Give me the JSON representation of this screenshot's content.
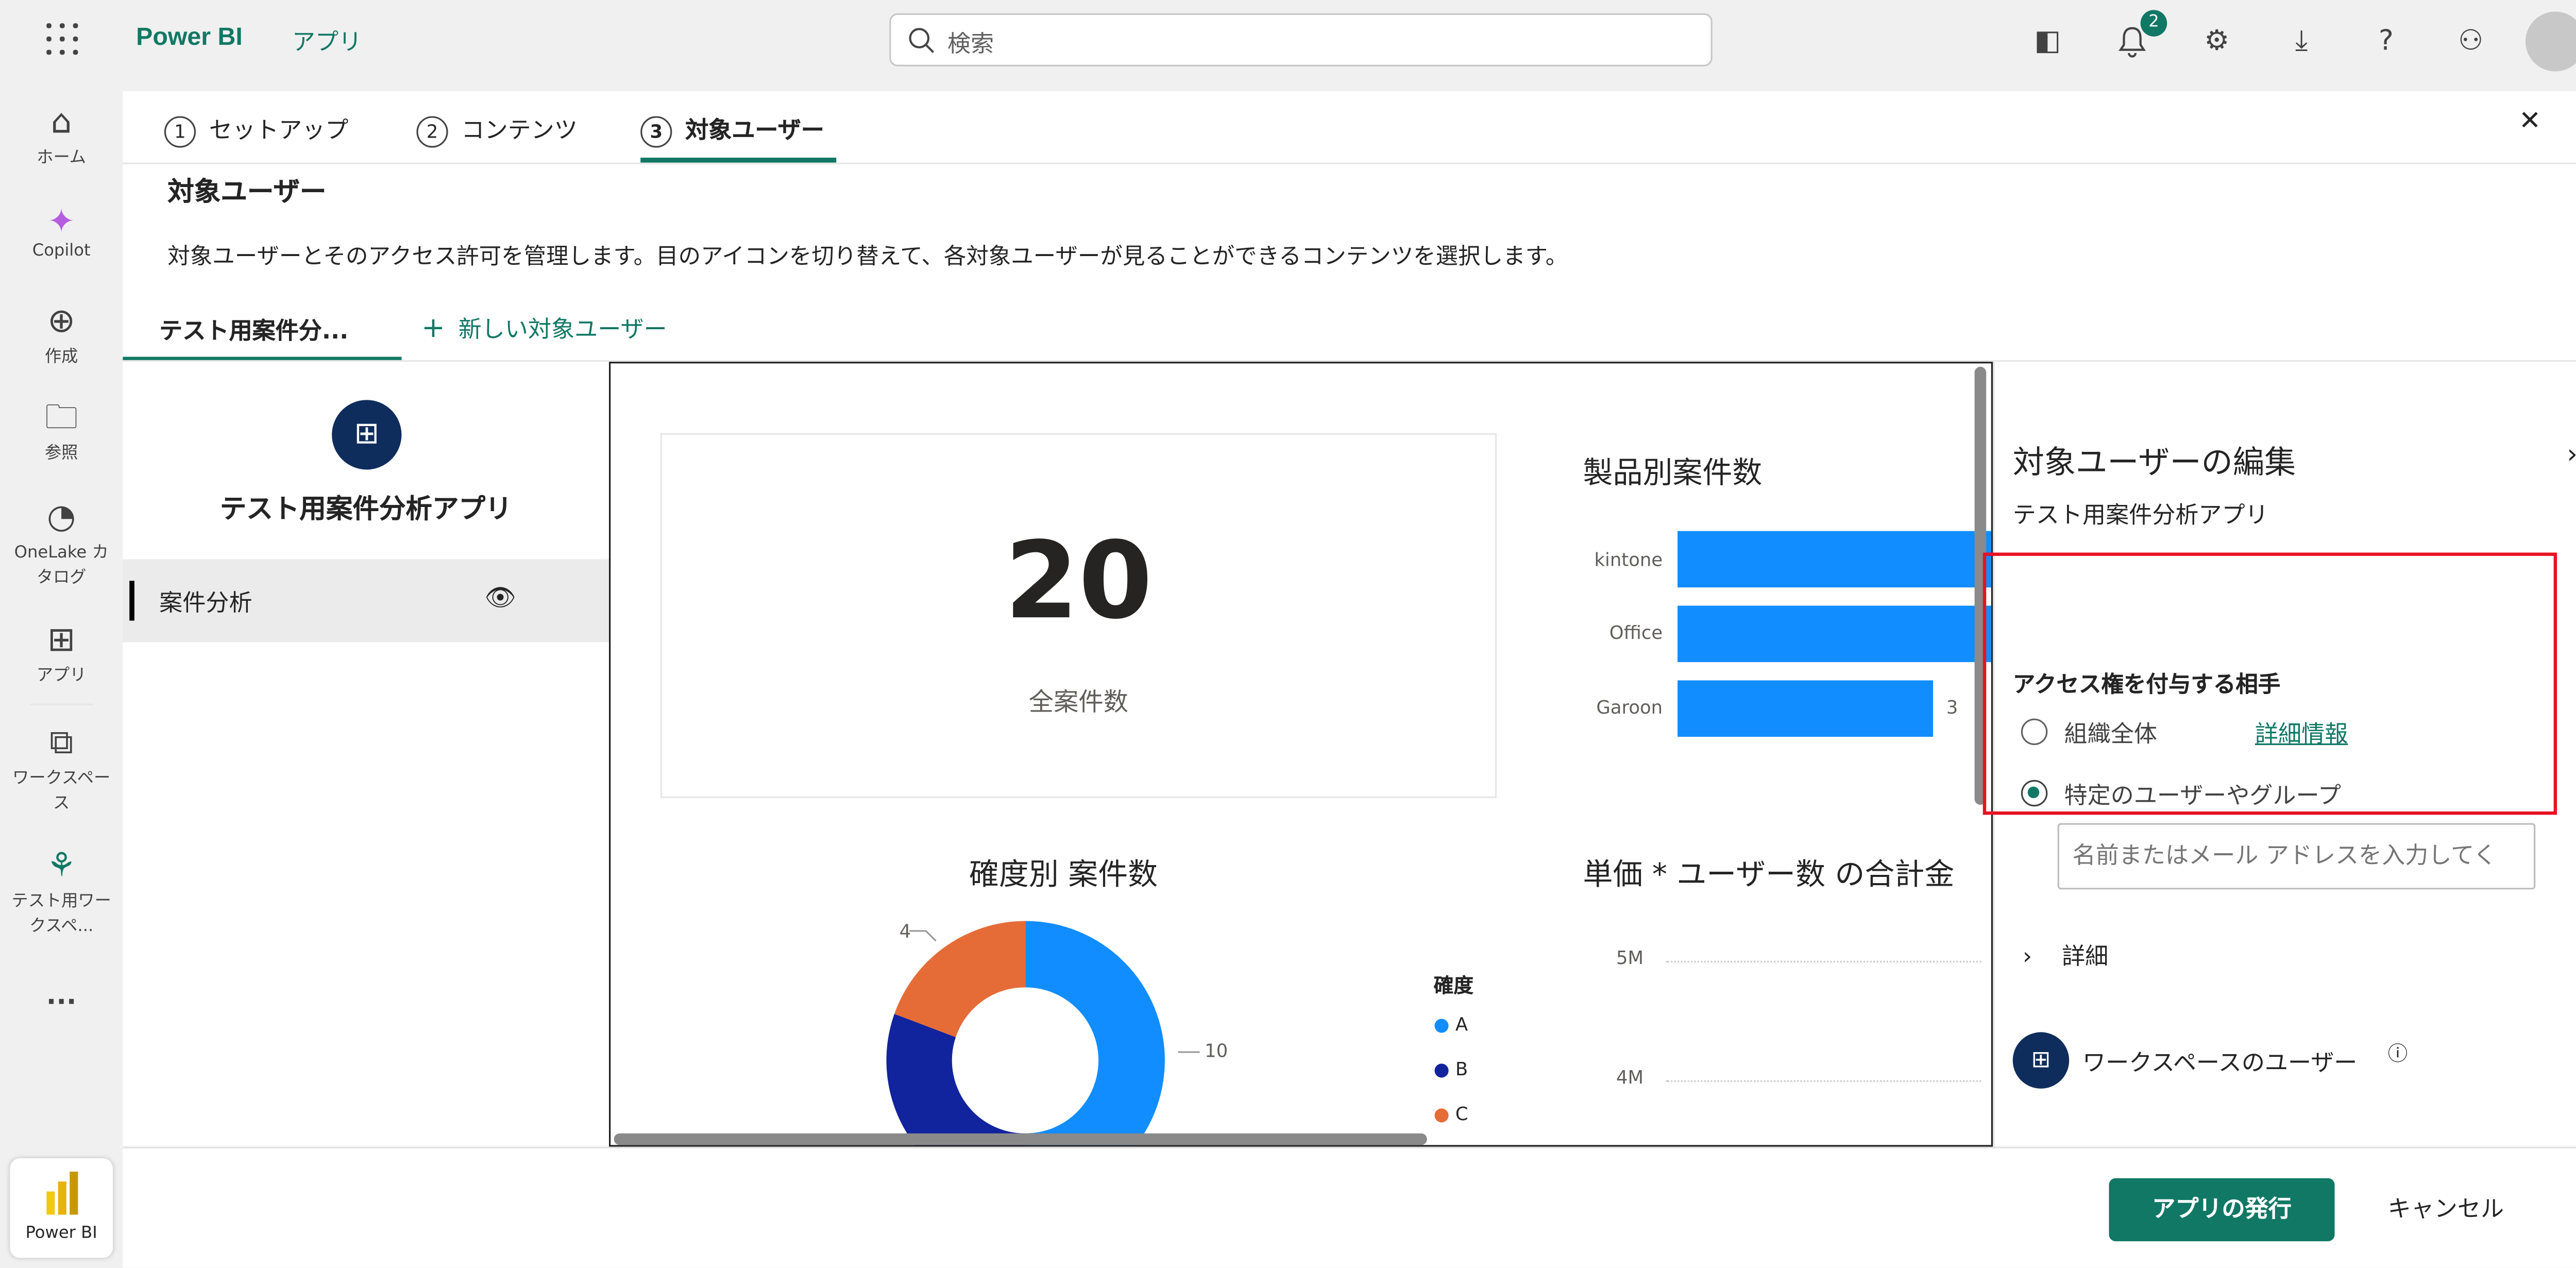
{
  "topbar": {
    "brand": "Power BI",
    "section": "アプリ",
    "search_placeholder": "検索",
    "notification_count": "2"
  },
  "leftnav": [
    {
      "label": "ホーム",
      "icon": "home-icon"
    },
    {
      "label": "Copilot",
      "icon": "copilot-icon"
    },
    {
      "label": "作成",
      "icon": "create-icon"
    },
    {
      "label": "参照",
      "icon": "folder-icon"
    },
    {
      "label": "OneLake カタログ",
      "icon": "onelake-icon"
    },
    {
      "label": "アプリ",
      "icon": "apps-icon"
    },
    {
      "label": "ワークスペース",
      "icon": "workspaces-icon"
    },
    {
      "label": "テスト用ワークスペ...",
      "icon": "workspace-icon"
    },
    {
      "label": "...",
      "icon": "more-icon"
    }
  ],
  "leftnav_footer": "Power BI",
  "steps": [
    {
      "num": "1",
      "label": "セットアップ"
    },
    {
      "num": "2",
      "label": "コンテンツ"
    },
    {
      "num": "3",
      "label": "対象ユーザー"
    }
  ],
  "page": {
    "title": "対象ユーザー",
    "description": "対象ユーザーとそのアクセス許可を管理します。目のアイコンを切り替えて、各対象ユーザーが見ることができるコンテンツを選択します。"
  },
  "audience_tabs": {
    "active": "テスト用案件分...",
    "new": "新しい対象ユーザー"
  },
  "app": {
    "name": "テスト用案件分析アプリ",
    "items": [
      {
        "label": "案件分析"
      }
    ]
  },
  "report": {
    "card": {
      "value": "20",
      "label": "全案件数"
    },
    "product_chart": {
      "title": "製品別案件数",
      "categories": [
        "kintone",
        "Office",
        "Garoon"
      ],
      "value_label": "3"
    },
    "donut": {
      "title": "確度別 案件数",
      "legend_title": "確度",
      "legend": [
        "A",
        "B",
        "C"
      ],
      "labels": [
        "4",
        "10"
      ],
      "colors": [
        "#118dff",
        "#12239e",
        "#e66c37"
      ]
    },
    "line": {
      "title": "単価 * ユーザー数 の合計金",
      "ticks": [
        "5M",
        "4M"
      ]
    }
  },
  "panel": {
    "title": "対象ユーザーの編集",
    "subtitle": "テスト用案件分析アプリ",
    "access_heading": "アクセス権を付与する相手",
    "option_org": "組織全体",
    "learn_more": "詳細情報",
    "option_specific": "特定のユーザーやグループ",
    "input_placeholder": "名前またはメール アドレスを入力してく",
    "details": "詳細",
    "workspace_users": "ワークスペースのユーザー"
  },
  "footer": {
    "publish": "アプリの発行",
    "cancel": "キャンセル"
  },
  "colors": {
    "accent": "#117865",
    "bar": "#118dff",
    "highlight": "#e81123"
  }
}
